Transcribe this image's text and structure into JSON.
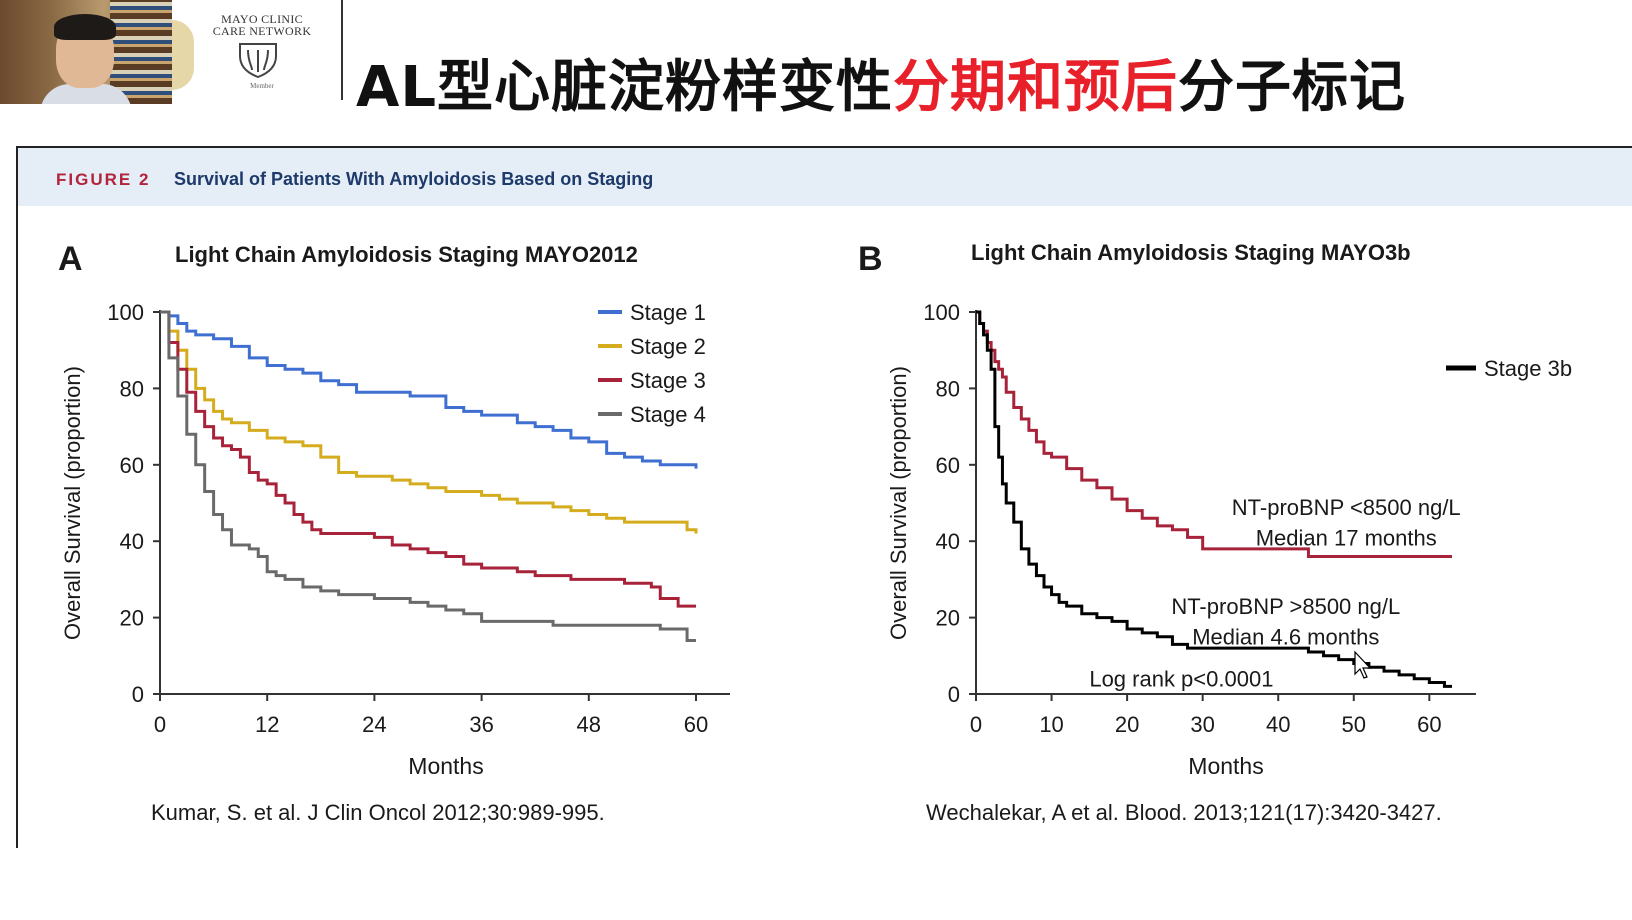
{
  "header": {
    "logo_line1": "MAYO CLINIC",
    "logo_line2": "CARE NETWORK",
    "logo_member": "Member",
    "title_prefix": "AL型心脏淀粉样变性",
    "title_highlight": "分期和预后",
    "title_suffix": "分子标记"
  },
  "figure": {
    "label": "FIGURE 2",
    "caption": "Survival of Patients With Amyloidosis Based on Staging"
  },
  "colors": {
    "stage1": "#3f6fd1",
    "stage2": "#d4ac1e",
    "stage3": "#a8233a",
    "stage4": "#6a6a6a",
    "stage3b": "#000000",
    "title_red": "#e8202a",
    "figure_label": "#b3233b",
    "figure_caption": "#1d3a6a"
  },
  "chart_data": [
    {
      "type": "line",
      "panel": "A",
      "title": "Light Chain Amyloidosis Staging MAYO2012",
      "xlabel": "Months",
      "ylabel": "Overall Survival (proportion)",
      "xlim": [
        0,
        60
      ],
      "ylim": [
        0,
        100
      ],
      "xticks": [
        "0",
        "12",
        "24",
        "36",
        "48",
        "60"
      ],
      "yticks": [
        "0",
        "20",
        "40",
        "60",
        "80",
        "100"
      ],
      "legend_position": "top-right",
      "citation": "Kumar, S. et al. J Clin Oncol 2012;30:989-995.",
      "series": [
        {
          "name": "Stage 1",
          "color": "#3f6fd1",
          "x": [
            0,
            1,
            2,
            3,
            4,
            6,
            8,
            10,
            12,
            14,
            16,
            18,
            20,
            22,
            24,
            26,
            28,
            30,
            32,
            34,
            36,
            38,
            40,
            42,
            44,
            46,
            48,
            50,
            52,
            54,
            56,
            58,
            60
          ],
          "y": [
            100,
            99,
            97,
            95,
            94,
            93,
            91,
            88,
            86,
            85,
            84,
            82,
            81,
            79,
            79,
            79,
            78,
            78,
            75,
            74,
            73,
            73,
            71,
            70,
            69,
            67,
            66,
            63,
            62,
            61,
            60,
            60,
            59
          ]
        },
        {
          "name": "Stage 2",
          "color": "#d4ac1e",
          "x": [
            0,
            1,
            2,
            3,
            4,
            5,
            6,
            7,
            8,
            10,
            12,
            14,
            16,
            18,
            20,
            22,
            24,
            26,
            28,
            30,
            32,
            34,
            36,
            38,
            40,
            42,
            44,
            46,
            48,
            50,
            52,
            54,
            56,
            58,
            59,
            60
          ],
          "y": [
            100,
            95,
            90,
            85,
            80,
            77,
            74,
            72,
            71,
            69,
            67,
            66,
            65,
            62,
            58,
            57,
            57,
            56,
            55,
            54,
            53,
            53,
            52,
            51,
            50,
            50,
            49,
            48,
            47,
            46,
            45,
            45,
            45,
            45,
            43,
            42
          ]
        },
        {
          "name": "Stage 3",
          "color": "#a8233a",
          "x": [
            0,
            1,
            2,
            3,
            4,
            5,
            6,
            7,
            8,
            9,
            10,
            11,
            12,
            13,
            14,
            15,
            16,
            17,
            18,
            19,
            20,
            22,
            24,
            26,
            28,
            30,
            32,
            34,
            36,
            38,
            40,
            42,
            44,
            46,
            48,
            50,
            52,
            54,
            55,
            56,
            58,
            60
          ],
          "y": [
            100,
            92,
            85,
            79,
            74,
            70,
            67,
            65,
            64,
            62,
            58,
            56,
            55,
            52,
            50,
            47,
            45,
            43,
            42,
            42,
            42,
            42,
            41,
            39,
            38,
            37,
            36,
            34,
            33,
            33,
            32,
            31,
            31,
            30,
            30,
            30,
            29,
            29,
            28,
            25,
            23,
            23
          ]
        },
        {
          "name": "Stage 4",
          "color": "#6a6a6a",
          "x": [
            0,
            1,
            2,
            3,
            4,
            5,
            6,
            7,
            8,
            9,
            10,
            11,
            12,
            13,
            14,
            16,
            18,
            20,
            22,
            24,
            26,
            28,
            30,
            32,
            34,
            36,
            38,
            40,
            42,
            44,
            46,
            48,
            50,
            52,
            54,
            56,
            58,
            59,
            60
          ],
          "y": [
            100,
            88,
            78,
            68,
            60,
            53,
            47,
            43,
            39,
            39,
            38,
            36,
            32,
            31,
            30,
            28,
            27,
            26,
            26,
            25,
            25,
            24,
            23,
            22,
            21,
            19,
            19,
            19,
            19,
            18,
            18,
            18,
            18,
            18,
            18,
            17,
            17,
            14,
            14
          ]
        }
      ]
    },
    {
      "type": "line",
      "panel": "B",
      "title": "Light Chain Amyloidosis Staging MAYO3b",
      "xlabel": "Months",
      "ylabel": "Overall Survival (proportion)",
      "xlim": [
        0,
        63
      ],
      "ylim": [
        0,
        100
      ],
      "xticks": [
        "0",
        "10",
        "20",
        "30",
        "40",
        "50",
        "60"
      ],
      "yticks": [
        "0",
        "20",
        "40",
        "60",
        "80",
        "100"
      ],
      "legend_position": "top-right",
      "citation": "Wechalekar, A et al. Blood. 2013;121(17):3420-3427.",
      "annotations": [
        {
          "text": "NT-proBNP <8500 ng/L",
          "x": 49,
          "y": 49
        },
        {
          "text": "Median 17 months",
          "x": 49,
          "y": 41
        },
        {
          "text": "NT-proBNP >8500 ng/L",
          "x": 41,
          "y": 23
        },
        {
          "text": "Median 4.6 months",
          "x": 41,
          "y": 15
        },
        {
          "text": "Log rank p<0.0001",
          "x": 15,
          "y": 4
        }
      ],
      "series": [
        {
          "name": "NT-proBNP <8500 ng/L",
          "color": "#a8233a",
          "x": [
            0,
            0.5,
            1,
            1.5,
            2,
            2.5,
            3,
            3.5,
            4,
            5,
            6,
            7,
            8,
            9,
            10,
            12,
            14,
            16,
            18,
            20,
            22,
            24,
            26,
            28,
            30,
            34,
            40,
            44,
            48,
            52,
            56,
            60,
            63
          ],
          "y": [
            100,
            97,
            95,
            92,
            90,
            87,
            85,
            83,
            79,
            75,
            72,
            69,
            66,
            63,
            62,
            59,
            56,
            54,
            51,
            48,
            46,
            44,
            43,
            41,
            38,
            38,
            38,
            36,
            36,
            36,
            36,
            36,
            36
          ]
        },
        {
          "name": "Stage 3b",
          "color": "#000000",
          "x": [
            0,
            0.5,
            1,
            1.5,
            2,
            2.5,
            3,
            3.5,
            4,
            5,
            6,
            7,
            8,
            9,
            10,
            11,
            12,
            14,
            16,
            18,
            20,
            22,
            24,
            26,
            28,
            30,
            32,
            36,
            40,
            44,
            46,
            48,
            50,
            52,
            54,
            56,
            58,
            60,
            62,
            63
          ],
          "y": [
            100,
            97,
            94,
            90,
            85,
            70,
            62,
            55,
            50,
            45,
            38,
            34,
            31,
            28,
            26,
            24,
            23,
            21,
            20,
            19,
            17,
            16,
            15,
            13,
            12,
            12,
            12,
            12,
            12,
            11,
            10,
            9,
            8,
            7,
            6,
            5,
            4,
            3,
            2,
            2
          ]
        }
      ]
    }
  ],
  "legend_b": {
    "label": "Stage  3b"
  }
}
